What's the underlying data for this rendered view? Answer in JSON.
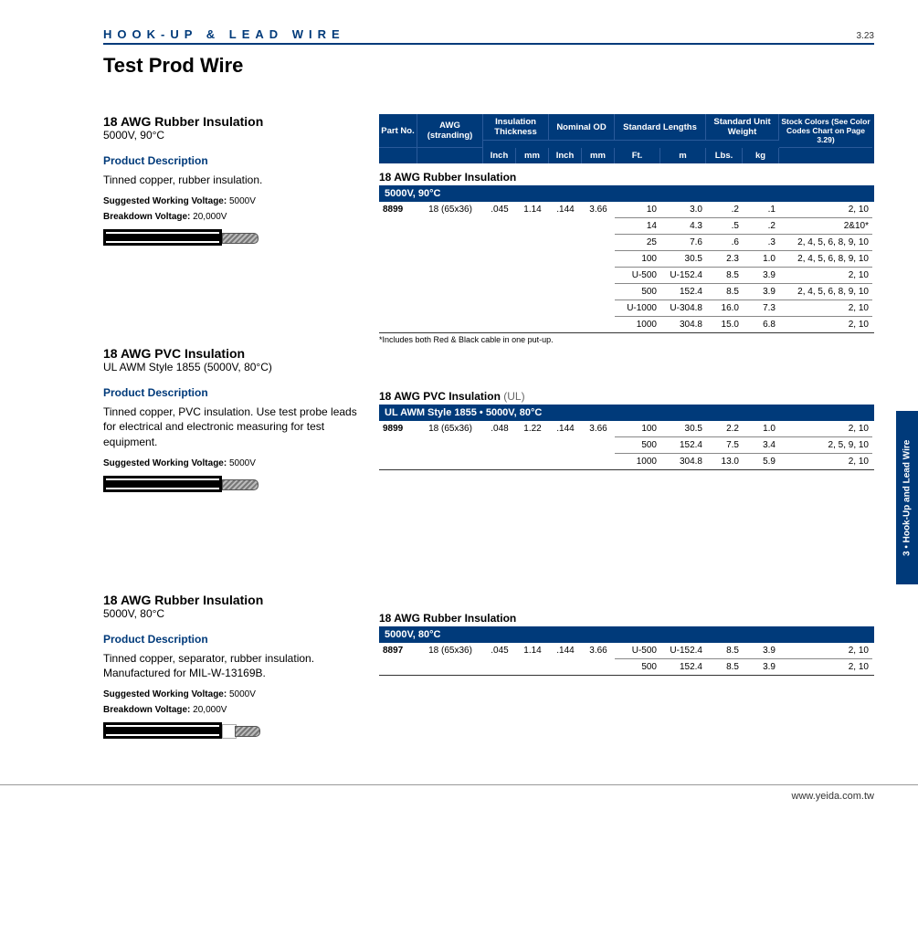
{
  "header": {
    "category": "HOOK-UP & LEAD WIRE",
    "page_no": "3.23"
  },
  "title": "Test Prod Wire",
  "side_tab": "3 • Hook-Up and Lead Wire",
  "footer": "www.yeida.com.tw",
  "col_headers": {
    "top": [
      "Part No.",
      "AWG (stranding)",
      "Insulation Thickness",
      "Nominal OD",
      "Standard Lengths",
      "Standard Unit Weight",
      "Stock Colors (See Color Codes Chart on Page 3.29)"
    ],
    "sub": [
      "Inch",
      "mm",
      "Inch",
      "mm",
      "Ft.",
      "m",
      "Lbs.",
      "kg"
    ]
  },
  "products": [
    {
      "title": "18 AWG Rubber Insulation",
      "subtitle": "5000V, 90°C",
      "description_header": "Product Description",
      "description": "Tinned copper, rubber insulation.",
      "specs": [
        {
          "label": "Suggested Working Voltage:",
          "value": "5000V"
        },
        {
          "label": "Breakdown Voltage:",
          "value": "20,000V"
        }
      ],
      "cable_style": "plain",
      "table": {
        "section_title": "18 AWG Rubber Insulation",
        "band": "5000V, 90°C",
        "base": {
          "part": "8899",
          "awg": "18 (65x36)",
          "it_in": ".045",
          "it_mm": "1.14",
          "od_in": ".144",
          "od_mm": "3.66"
        },
        "rows": [
          {
            "ft": "10",
            "m": "3.0",
            "lbs": ".2",
            "kg": ".1",
            "colors": "2, 10"
          },
          {
            "ft": "14",
            "m": "4.3",
            "lbs": ".5",
            "kg": ".2",
            "colors": "2&10*"
          },
          {
            "ft": "25",
            "m": "7.6",
            "lbs": ".6",
            "kg": ".3",
            "colors": "2, 4, 5, 6, 8, 9, 10"
          },
          {
            "ft": "100",
            "m": "30.5",
            "lbs": "2.3",
            "kg": "1.0",
            "colors": "2, 4, 5, 6, 8, 9, 10"
          },
          {
            "ft": "U-500",
            "m": "U-152.4",
            "lbs": "8.5",
            "kg": "3.9",
            "colors": "2, 10"
          },
          {
            "ft": "500",
            "m": "152.4",
            "lbs": "8.5",
            "kg": "3.9",
            "colors": "2, 4, 5, 6, 8, 9, 10"
          },
          {
            "ft": "U-1000",
            "m": "U-304.8",
            "lbs": "16.0",
            "kg": "7.3",
            "colors": "2, 10"
          },
          {
            "ft": "1000",
            "m": "304.8",
            "lbs": "15.0",
            "kg": "6.8",
            "colors": "2, 10"
          }
        ],
        "footnote": "*Includes both Red & Black cable in one put-up."
      }
    },
    {
      "title": "18 AWG PVC Insulation",
      "subtitle": "UL AWM Style 1855 (5000V, 80°C)",
      "description_header": "Product Description",
      "description": "Tinned copper, PVC insulation. Use test probe leads for electrical and electronic measuring for test equipment.",
      "specs": [
        {
          "label": "Suggested Working Voltage:",
          "value": "5000V"
        }
      ],
      "cable_style": "plain",
      "table": {
        "section_title": "18 AWG PVC Insulation",
        "section_suffix": "(UL)",
        "band": "UL AWM Style 1855 • 5000V, 80°C",
        "base": {
          "part": "9899",
          "awg": "18 (65x36)",
          "it_in": ".048",
          "it_mm": "1.22",
          "od_in": ".144",
          "od_mm": "3.66"
        },
        "rows": [
          {
            "ft": "100",
            "m": "30.5",
            "lbs": "2.2",
            "kg": "1.0",
            "colors": "2, 10"
          },
          {
            "ft": "500",
            "m": "152.4",
            "lbs": "7.5",
            "kg": "3.4",
            "colors": "2, 5, 9, 10"
          },
          {
            "ft": "1000",
            "m": "304.8",
            "lbs": "13.0",
            "kg": "5.9",
            "colors": "2, 10"
          }
        ]
      }
    },
    {
      "title": "18 AWG Rubber Insulation",
      "subtitle": "5000V, 80°C",
      "description_header": "Product Description",
      "description": "Tinned copper, separator, rubber insulation. Manufactured for MIL-W-13169B.",
      "specs": [
        {
          "label": "Suggested Working Voltage:",
          "value": "5000V"
        },
        {
          "label": "Breakdown Voltage:",
          "value": "20,000V"
        }
      ],
      "cable_style": "sep",
      "table": {
        "section_title": "18 AWG Rubber Insulation",
        "band": "5000V, 80°C",
        "base": {
          "part": "8897",
          "awg": "18 (65x36)",
          "it_in": ".045",
          "it_mm": "1.14",
          "od_in": ".144",
          "od_mm": "3.66"
        },
        "rows": [
          {
            "ft": "U-500",
            "m": "U-152.4",
            "lbs": "8.5",
            "kg": "3.9",
            "colors": "2, 10"
          },
          {
            "ft": "500",
            "m": "152.4",
            "lbs": "8.5",
            "kg": "3.9",
            "colors": "2, 10"
          }
        ]
      }
    }
  ]
}
